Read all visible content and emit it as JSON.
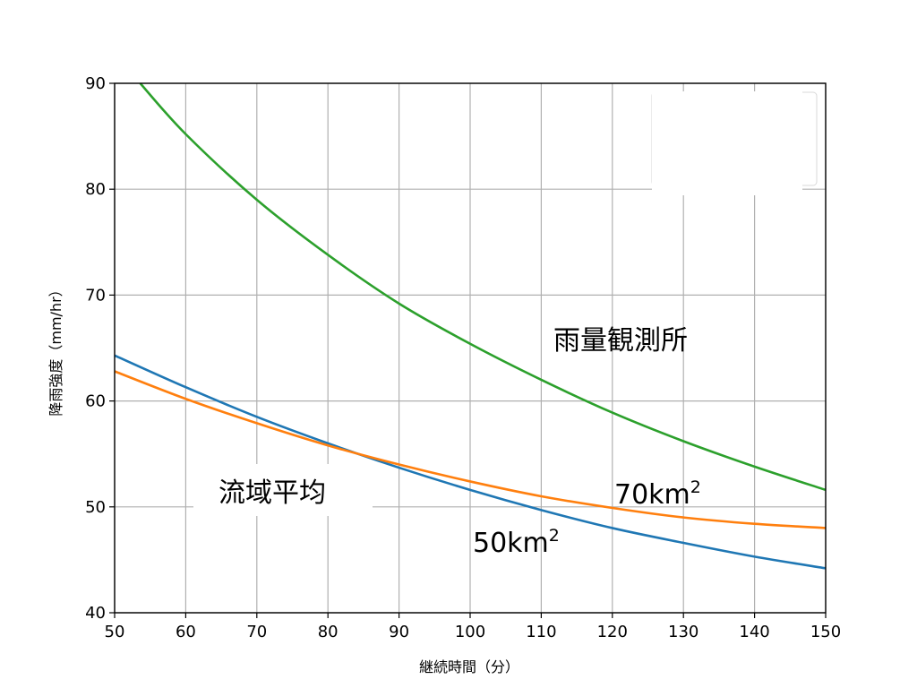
{
  "chart_data": {
    "type": "line",
    "xlabel": "継続時間（分）",
    "ylabel": "降雨強度（mm/hr）",
    "xlim": [
      50,
      150
    ],
    "ylim": [
      40,
      90
    ],
    "xticks": [
      50,
      60,
      70,
      80,
      90,
      100,
      110,
      120,
      130,
      140,
      150
    ],
    "yticks": [
      40,
      50,
      60,
      70,
      80,
      90
    ],
    "grid": true,
    "series": [
      {
        "color": "#1f77b4",
        "x": [
          50,
          60,
          70,
          80,
          90,
          100,
          110,
          120,
          130,
          140,
          150
        ],
        "y": [
          64.3,
          61.3,
          58.5,
          56.0,
          53.7,
          51.6,
          49.7,
          48.0,
          46.6,
          45.3,
          44.2
        ]
      },
      {
        "color": "#ff7f0e",
        "x": [
          50,
          60,
          70,
          80,
          90,
          100,
          110,
          120,
          130,
          140,
          150
        ],
        "y": [
          62.8,
          60.2,
          57.9,
          55.8,
          54.0,
          52.4,
          51.0,
          49.9,
          49.0,
          48.4,
          48.0
        ]
      },
      {
        "color": "#2ca02c",
        "x": [
          53.6,
          60,
          70,
          80,
          90,
          100,
          110,
          120,
          130,
          140,
          150
        ],
        "y": [
          90.0,
          85.2,
          79.0,
          73.8,
          69.2,
          65.4,
          62.0,
          58.9,
          56.2,
          53.8,
          51.6
        ]
      }
    ],
    "annotations": {
      "rain_gauge": "雨量観測所",
      "basin_average": "流域平均",
      "area_70": "70km",
      "area_50": "50km",
      "superscript": "2"
    }
  }
}
